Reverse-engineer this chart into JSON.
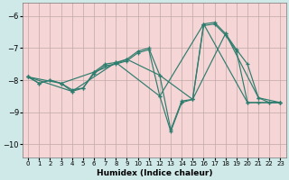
{
  "xlabel": "Humidex (Indice chaleur)",
  "xlim": [
    -0.5,
    23.5
  ],
  "ylim": [
    -10.4,
    -5.6
  ],
  "yticks": [
    -10,
    -9,
    -8,
    -7,
    -6
  ],
  "xticks": [
    0,
    1,
    2,
    3,
    4,
    5,
    6,
    7,
    8,
    9,
    10,
    11,
    12,
    13,
    14,
    15,
    16,
    17,
    18,
    19,
    20,
    21,
    22,
    23
  ],
  "bg_outer": "#cfe8e8",
  "bg_plot": "#f5d5d5",
  "grid_color": "#c0a8a8",
  "line_color": "#2d7d6e",
  "series": [
    {
      "x": [
        0,
        1,
        2,
        3,
        4,
        5,
        6,
        7,
        8,
        9,
        10,
        11,
        12,
        13,
        14,
        15,
        16,
        17,
        18,
        19,
        20,
        21,
        22,
        23
      ],
      "y": [
        -7.9,
        -8.1,
        -8.0,
        -8.1,
        -8.35,
        -8.25,
        -7.75,
        -7.5,
        -7.45,
        -7.35,
        -7.1,
        -7.0,
        -7.85,
        -9.55,
        -8.65,
        -8.6,
        -6.25,
        -6.2,
        -6.55,
        -7.05,
        -7.5,
        -8.55,
        -8.7,
        -8.7
      ]
    },
    {
      "x": [
        0,
        1,
        2,
        3,
        4,
        5,
        6,
        7,
        8,
        9,
        10,
        11,
        12,
        13,
        14,
        15,
        16,
        17,
        18,
        19,
        20,
        21,
        22,
        23
      ],
      "y": [
        -7.9,
        -8.1,
        -8.0,
        -8.1,
        -8.3,
        -8.25,
        -7.8,
        -7.55,
        -7.5,
        -7.4,
        -7.15,
        -7.05,
        -8.5,
        -9.6,
        -8.7,
        -8.6,
        -6.3,
        -6.25,
        -6.6,
        -7.1,
        -8.7,
        -8.7,
        -8.7,
        -8.7
      ]
    },
    {
      "x": [
        0,
        4,
        8,
        12,
        16,
        20,
        23
      ],
      "y": [
        -7.9,
        -8.35,
        -7.45,
        -8.5,
        -6.25,
        -8.7,
        -8.7
      ]
    },
    {
      "x": [
        0,
        3,
        6,
        9,
        12,
        15,
        18,
        21,
        23
      ],
      "y": [
        -7.9,
        -8.1,
        -7.75,
        -7.35,
        -7.85,
        -8.6,
        -6.55,
        -8.55,
        -8.7
      ]
    }
  ]
}
